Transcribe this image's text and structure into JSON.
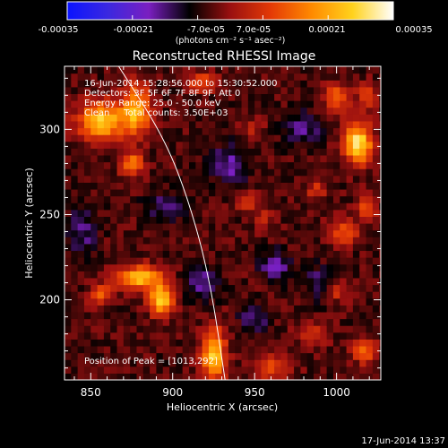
{
  "colorbar": {
    "ticks": [
      "-0.00035",
      "-0.00021",
      "-7.0e-05",
      "7.0e-05",
      "0.00021",
      "0.00035"
    ],
    "unit_label": "(photons cm⁻² s⁻¹ asec⁻²)",
    "stops": [
      "#0a14ff",
      "#3b28e0",
      "#7a1fc0",
      "#000000",
      "#9a1010",
      "#e43a06",
      "#ff8a00",
      "#ffd21c",
      "#ffffff"
    ]
  },
  "header": {
    "title": "Reconstructed RHESSI Image",
    "info_lines": [
      "16-Jun-2014 15:28:56.000 to 15:30:52.000",
      "Detectors: 3F 5F 6F 7F 8F 9F, Att 0",
      "Energy Range: 25.0 - 50.0 keV",
      "Clean     Total counts: 3.50E+03"
    ],
    "peak_label": "Position of Peak = [1013,292]"
  },
  "footer": {
    "timestamp": "17-Jun-2014 13:37"
  },
  "chart_data": {
    "type": "heatmap",
    "title": "Reconstructed RHESSI Image",
    "xlabel": "Heliocentric X (arcsec)",
    "ylabel": "Heliocentric Y (arcsec)",
    "xlim": [
      834,
      1027
    ],
    "ylim": [
      153,
      337
    ],
    "xticks": [
      850,
      900,
      950,
      1000
    ],
    "yticks": [
      200,
      250,
      300
    ],
    "color_range": [
      -0.00035,
      0.00035
    ],
    "colorbar_ticks": [
      -0.00035,
      -0.00021,
      -7e-05,
      7e-05,
      0.00021,
      0.00035
    ],
    "limb_curve": [
      [
        867,
        337
      ],
      [
        895,
        295
      ],
      [
        911,
        255
      ],
      [
        923,
        210
      ],
      [
        932,
        153
      ]
    ],
    "peak_position": [
      1013,
      292
    ],
    "sources": [
      {
        "x": 857,
        "y": 305,
        "amp": 0.0003,
        "sx": 10,
        "sy": 8
      },
      {
        "x": 878,
        "y": 312,
        "amp": 0.00026,
        "sx": 6,
        "sy": 10
      },
      {
        "x": 875,
        "y": 280,
        "amp": 0.0002,
        "sx": 5,
        "sy": 5
      },
      {
        "x": 880,
        "y": 213,
        "amp": 0.00028,
        "sx": 10,
        "sy": 5
      },
      {
        "x": 893,
        "y": 200,
        "amp": 0.00032,
        "sx": 5,
        "sy": 6
      },
      {
        "x": 856,
        "y": 203,
        "amp": 0.00016,
        "sx": 5,
        "sy": 4
      },
      {
        "x": 925,
        "y": 168,
        "amp": 0.0003,
        "sx": 5,
        "sy": 11
      },
      {
        "x": 1013,
        "y": 292,
        "amp": 0.00035,
        "sx": 6,
        "sy": 8
      },
      {
        "x": 1000,
        "y": 318,
        "amp": 0.00018,
        "sx": 5,
        "sy": 6
      },
      {
        "x": 1018,
        "y": 320,
        "amp": 0.00014,
        "sx": 4,
        "sy": 5
      },
      {
        "x": 918,
        "y": 328,
        "amp": 0.00016,
        "sx": 6,
        "sy": 4
      },
      {
        "x": 988,
        "y": 265,
        "amp": 0.00012,
        "sx": 4,
        "sy": 4
      },
      {
        "x": 945,
        "y": 258,
        "amp": 0.00013,
        "sx": 4,
        "sy": 4
      },
      {
        "x": 955,
        "y": 247,
        "amp": 0.0001,
        "sx": 4,
        "sy": 4
      },
      {
        "x": 1005,
        "y": 240,
        "amp": 0.00014,
        "sx": 7,
        "sy": 5
      },
      {
        "x": 1018,
        "y": 255,
        "amp": 0.00016,
        "sx": 4,
        "sy": 5
      },
      {
        "x": 1000,
        "y": 205,
        "amp": 0.00011,
        "sx": 5,
        "sy": 4
      },
      {
        "x": 985,
        "y": 180,
        "amp": 0.00012,
        "sx": 6,
        "sy": 5
      },
      {
        "x": 1017,
        "y": 170,
        "amp": 0.00016,
        "sx": 5,
        "sy": 5
      },
      {
        "x": 960,
        "y": 160,
        "amp": 0.00014,
        "sx": 8,
        "sy": 5
      },
      {
        "x": 948,
        "y": 300,
        "amp": 8e-05,
        "sx": 5,
        "sy": 4
      },
      {
        "x": 963,
        "y": 220,
        "amp": -0.00014,
        "sx": 6,
        "sy": 6
      },
      {
        "x": 935,
        "y": 280,
        "amp": -0.00012,
        "sx": 8,
        "sy": 8
      },
      {
        "x": 918,
        "y": 210,
        "amp": -0.00012,
        "sx": 7,
        "sy": 7
      },
      {
        "x": 980,
        "y": 300,
        "amp": -0.0001,
        "sx": 8,
        "sy": 7
      },
      {
        "x": 845,
        "y": 240,
        "amp": -0.0001,
        "sx": 6,
        "sy": 10
      },
      {
        "x": 950,
        "y": 190,
        "amp": -0.0001,
        "sx": 6,
        "sy": 6
      },
      {
        "x": 895,
        "y": 255,
        "amp": -9e-05,
        "sx": 8,
        "sy": 6
      },
      {
        "x": 990,
        "y": 210,
        "amp": -9e-05,
        "sx": 7,
        "sy": 7
      }
    ],
    "background_level": -4.5e-05,
    "texture_amplitude": 3.5e-05
  }
}
